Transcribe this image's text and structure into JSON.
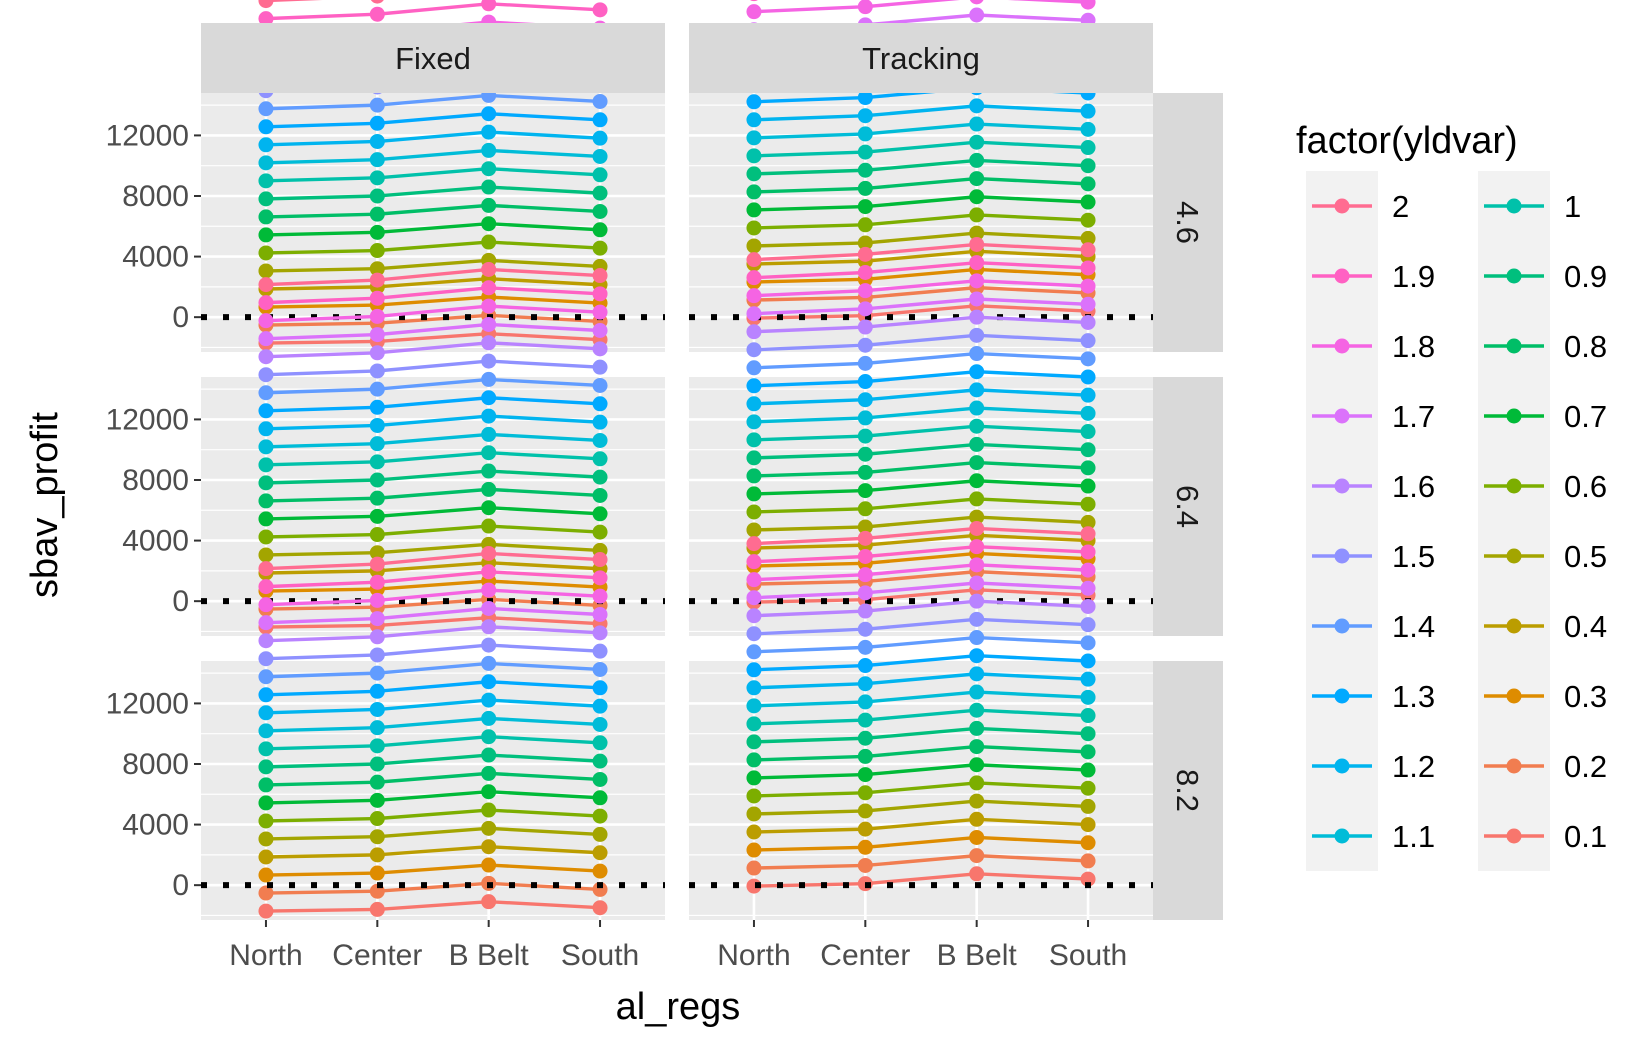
{
  "chart_data": {
    "type": "line",
    "xlabel": "al_regs",
    "ylabel": "sbav_profit",
    "categories": [
      "North",
      "Center",
      "B Belt",
      "South"
    ],
    "facet_cols": [
      "Fixed",
      "Tracking"
    ],
    "facet_rows": [
      "4.6",
      "6.4",
      "8.2"
    ],
    "y_ticks": [
      "0",
      "4000",
      "8000",
      "12000"
    ],
    "ylim": [
      -2300,
      14800
    ],
    "grid": true,
    "reference_line": {
      "y": 0,
      "style": "dotted"
    },
    "legend": {
      "title": "factor(yldvar)",
      "position": "right",
      "levels": [
        "2",
        "1.9",
        "1.8",
        "1.7",
        "1.6",
        "1.5",
        "1.4",
        "1.3",
        "1.2",
        "1.1",
        "1",
        "0.9",
        "0.8",
        "0.7",
        "0.6",
        "0.5",
        "0.4",
        "0.3",
        "0.2",
        "0.1"
      ],
      "colors": [
        "#FF6C91",
        "#FF61C3",
        "#F564E3",
        "#DB72FB",
        "#B983FF",
        "#8F91FF",
        "#619CFF",
        "#00A9FF",
        "#00B4EF",
        "#00BCD8",
        "#00C1AA",
        "#00BF7D",
        "#00BE67",
        "#00BA38",
        "#7CAE00",
        "#A3A500",
        "#BB9D00",
        "#DE8C00",
        "#F17D50",
        "#F8766D"
      ]
    },
    "series_rule": "value = base + yldvar * slope",
    "models": {
      "Fixed": {
        "base": [
          -2900,
          -2800,
          -2300,
          -2700
        ],
        "slope": [
          11900,
          12000,
          12100,
          12100
        ]
      },
      "Tracking": {
        "base": [
          -1250,
          -1100,
          -450,
          -800
        ],
        "slope": [
          11900,
          12000,
          12000,
          12000
        ]
      }
    }
  }
}
